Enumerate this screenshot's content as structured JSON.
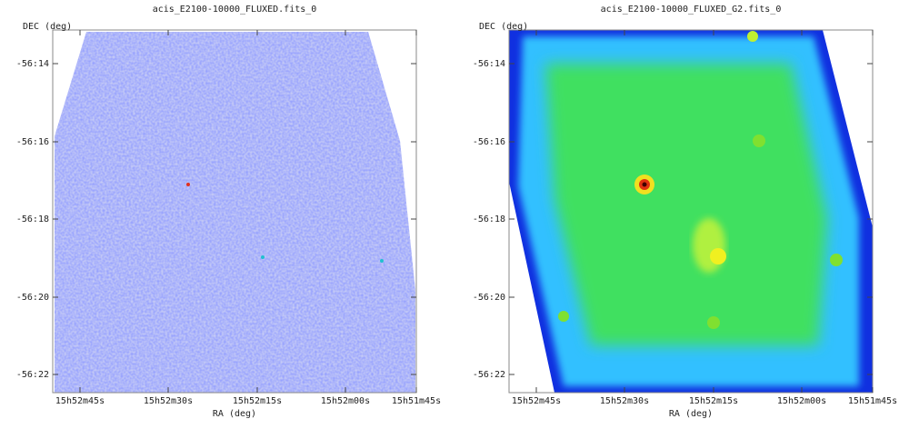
{
  "panels": [
    {
      "title": "acis_E2100-10000_FLUXED.fits_0",
      "y_label": "DEC (deg)",
      "x_label": "RA (deg)",
      "yticks": [
        "-56:14",
        "-56:16",
        "-56:18",
        "-56:20",
        "-56:22"
      ],
      "xticks": [
        "15h52m45s",
        "15h52m30s",
        "15h52m15s",
        "15h52m00s",
        "15h51m45s"
      ]
    },
    {
      "title": "acis_E2100-10000_FLUXED_G2.fits_0",
      "y_label": "DEC (deg)",
      "x_label": "RA (deg)",
      "yticks": [
        "-56:14",
        "-56:16",
        "-56:18",
        "-56:20",
        "-56:22"
      ],
      "xticks": [
        "15h52m45s",
        "15h52m30s",
        "15h52m15s",
        "15h52m00s",
        "15h51m45s"
      ]
    }
  ]
}
